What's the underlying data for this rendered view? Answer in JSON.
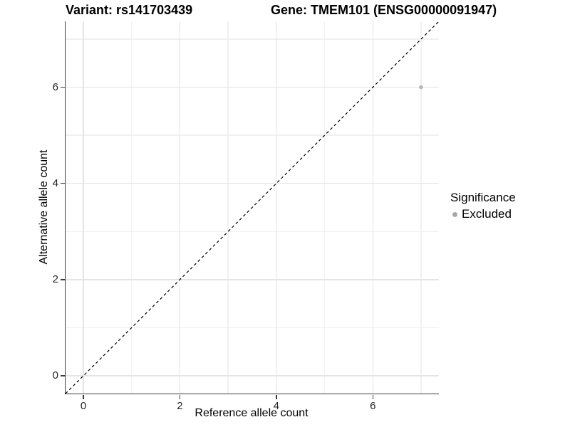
{
  "titles": {
    "left": "Variant: rs141703439",
    "right": "Gene: TMEM101 (ENSG00000091947)"
  },
  "chart_data": {
    "type": "scatter",
    "title": "Variant: rs141703439   Gene: TMEM101 (ENSG00000091947)",
    "xlabel": "Reference allele count",
    "ylabel": "Alternative allele count",
    "xlim": [
      -0.37,
      7.37
    ],
    "ylim": [
      -0.37,
      7.37
    ],
    "major_ticks": [
      0,
      2,
      4,
      6
    ],
    "minor_ticks": [
      1,
      3,
      5,
      7
    ],
    "grid": "on",
    "points": [
      {
        "x": 7,
        "y": 6,
        "series": "Excluded"
      }
    ],
    "reference_line": {
      "type": "identity",
      "style": "dashed",
      "color": "#000000"
    },
    "legend": {
      "title": "Significance",
      "position": "right",
      "entries": [
        {
          "label": "Excluded",
          "color": "#a8a8a8"
        }
      ]
    },
    "colors": {
      "point": "#b4b4b4",
      "grid_major": "#e4e4e4",
      "grid_minor": "#f0f0f0",
      "axis": "#3c3c3c",
      "background": "#ffffff"
    }
  }
}
